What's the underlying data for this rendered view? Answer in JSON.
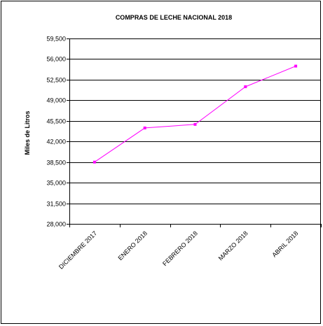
{
  "chart_data": {
    "type": "line",
    "title": "COMPRAS DE LECHE NACIONAL 2018",
    "xlabel": "",
    "ylabel": "Miles de Litros",
    "categories": [
      "DICIEMBRE 2017",
      "ENERO 2018",
      "FEBRERO 2018",
      "MARZO 2018",
      "ABRIL 2018"
    ],
    "series": [
      {
        "values": [
          38500,
          44300,
          44900,
          51300,
          54800
        ],
        "color": "#ff00ff"
      }
    ],
    "ylim": [
      28000,
      59500
    ],
    "yticks": [
      28000,
      31500,
      35000,
      38500,
      42000,
      45500,
      49000,
      52500,
      56000,
      59500
    ],
    "ytick_labels": [
      "28,000",
      "31,500",
      "35,000",
      "38,500",
      "42,000",
      "45,500",
      "49,000",
      "52,500",
      "56,000",
      "59,500"
    ],
    "grid": true,
    "legend": "none"
  }
}
